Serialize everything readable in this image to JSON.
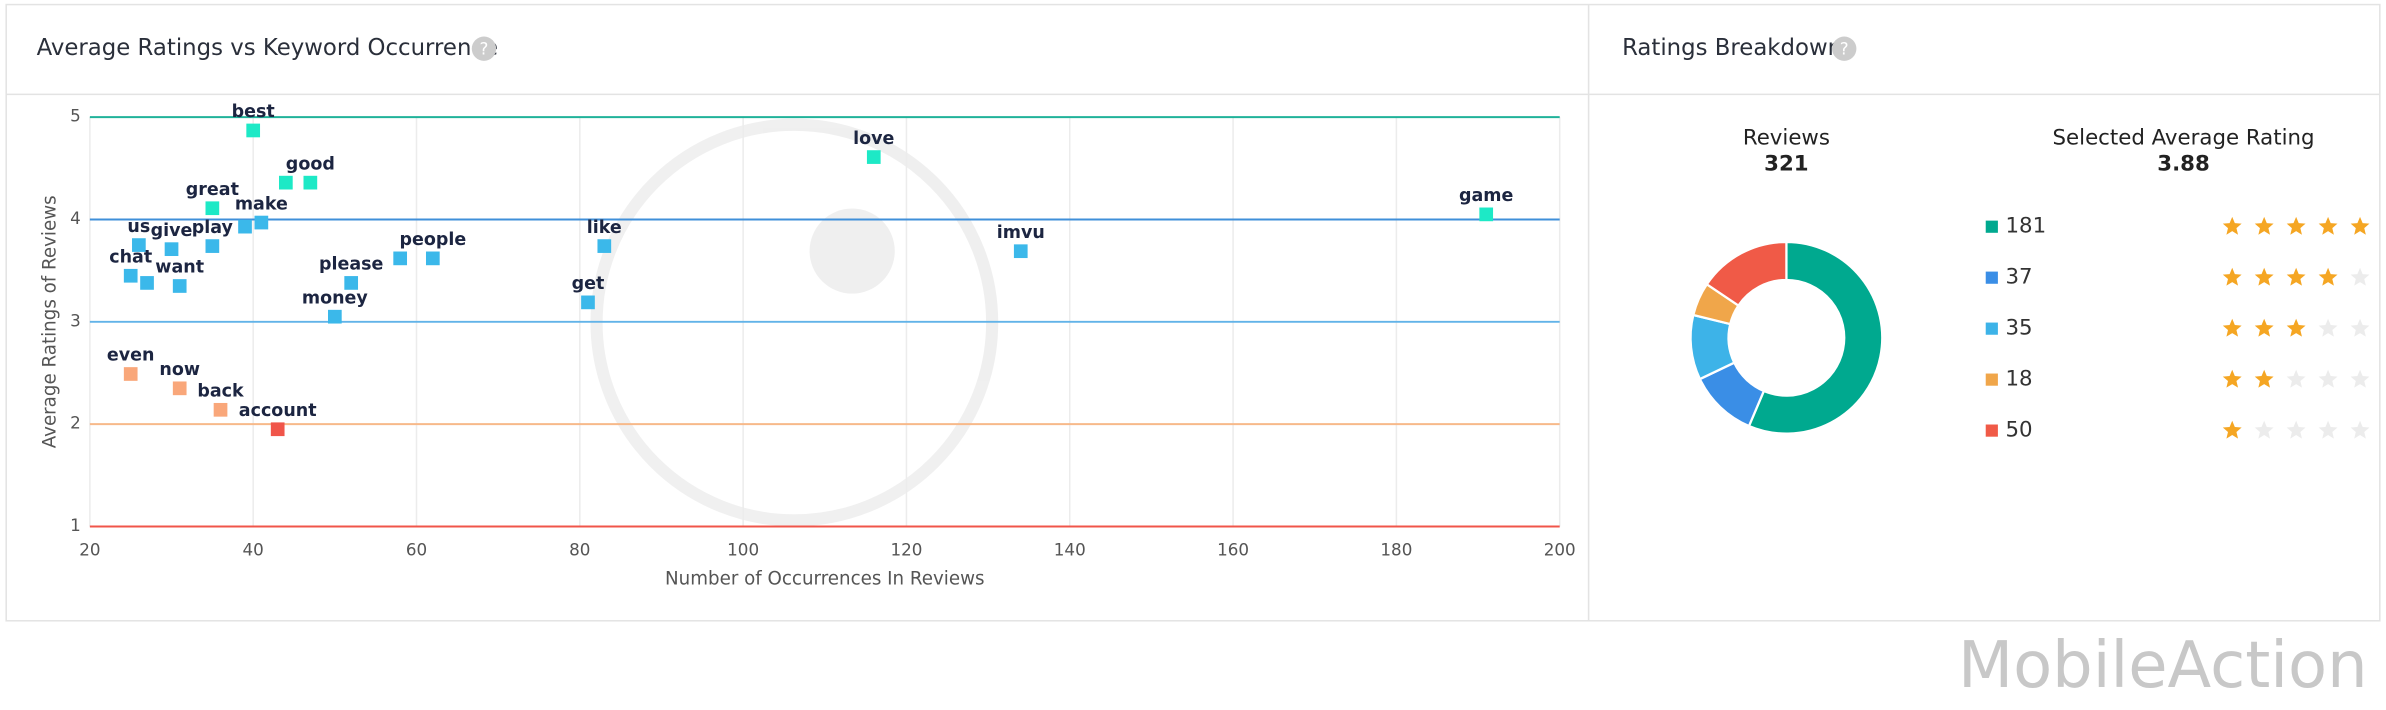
{
  "scatter": {
    "chart_data": {
      "type": "scatter",
      "title": "Average Ratings vs Keyword Occurrence",
      "x_label": "Number of Occurrences In Reviews",
      "y_label": "Average Ratings of Reviews",
      "xlim": [
        20,
        200
      ],
      "xticks": [
        20,
        40,
        60,
        80,
        100,
        120,
        140,
        160,
        180,
        200
      ],
      "ylim": [
        1,
        5
      ],
      "yticks": [
        1,
        2,
        3,
        4,
        5
      ],
      "ytick_colors": [
        "#f0554a",
        "#f7b98a",
        "#62b3e8",
        "#3f8fd9",
        "#20b29a"
      ],
      "points": [
        {
          "label": "best",
          "x": 40,
          "y": 4.87,
          "color": "#1de9c6"
        },
        {
          "label": null,
          "x": 44,
          "y": 4.36,
          "color": "#1de9c6"
        },
        {
          "label": "good",
          "x": 47,
          "y": 4.36,
          "color": "#1de9c6"
        },
        {
          "label": "great",
          "x": 35,
          "y": 4.11,
          "color": "#1de9c6"
        },
        {
          "label": null,
          "x": 39,
          "y": 3.93,
          "color": "#3bb8ea"
        },
        {
          "label": "make",
          "x": 41,
          "y": 3.97,
          "color": "#3bb8ea"
        },
        {
          "label": "us",
          "x": 26,
          "y": 3.75,
          "color": "#3bb8ea"
        },
        {
          "label": "give",
          "x": 30,
          "y": 3.71,
          "color": "#3bb8ea"
        },
        {
          "label": "play",
          "x": 35,
          "y": 3.74,
          "color": "#3bb8ea"
        },
        {
          "label": "chat",
          "x": 25,
          "y": 3.45,
          "color": "#3bb8ea"
        },
        {
          "label": null,
          "x": 27,
          "y": 3.38,
          "color": "#3bb8ea"
        },
        {
          "label": "want",
          "x": 31,
          "y": 3.35,
          "color": "#3bb8ea"
        },
        {
          "label": "please",
          "x": 52,
          "y": 3.38,
          "color": "#3bb8ea"
        },
        {
          "label": null,
          "x": 58,
          "y": 3.62,
          "color": "#3bb8ea"
        },
        {
          "label": "people",
          "x": 62,
          "y": 3.62,
          "color": "#3bb8ea"
        },
        {
          "label": "money",
          "x": 50,
          "y": 3.05,
          "color": "#3bb8ea"
        },
        {
          "label": "get",
          "x": 81,
          "y": 3.19,
          "color": "#3bb8ea"
        },
        {
          "label": "like",
          "x": 83,
          "y": 3.74,
          "color": "#3bb8ea"
        },
        {
          "label": "love",
          "x": 116,
          "y": 4.61,
          "color": "#1de9c6"
        },
        {
          "label": "imvu",
          "x": 134,
          "y": 3.69,
          "color": "#3bb8ea"
        },
        {
          "label": "game",
          "x": 191,
          "y": 4.05,
          "color": "#1de9c6"
        },
        {
          "label": "even",
          "x": 25,
          "y": 2.49,
          "color": "#f9a77a"
        },
        {
          "label": "now",
          "x": 31,
          "y": 2.35,
          "color": "#f9a77a"
        },
        {
          "label": "back",
          "x": 36,
          "y": 2.14,
          "color": "#f9a77a"
        },
        {
          "label": "account",
          "x": 43,
          "y": 1.95,
          "color": "#f0554a"
        }
      ]
    }
  },
  "breakdown": {
    "title": "Ratings Breakdown",
    "reviews_label": "Reviews",
    "reviews_total": 321,
    "average_label": "Selected Average Rating",
    "average": 3.88,
    "rows": [
      {
        "count": 181,
        "stars": 5,
        "color": "#00a98f"
      },
      {
        "count": 37,
        "stars": 4,
        "color": "#3a8ee6"
      },
      {
        "count": 35,
        "stars": 3,
        "color": "#3db3e8"
      },
      {
        "count": 18,
        "stars": 2,
        "color": "#f0a64a"
      },
      {
        "count": 50,
        "stars": 1,
        "color": "#f05a47"
      }
    ]
  },
  "watermark": "MobileAction"
}
